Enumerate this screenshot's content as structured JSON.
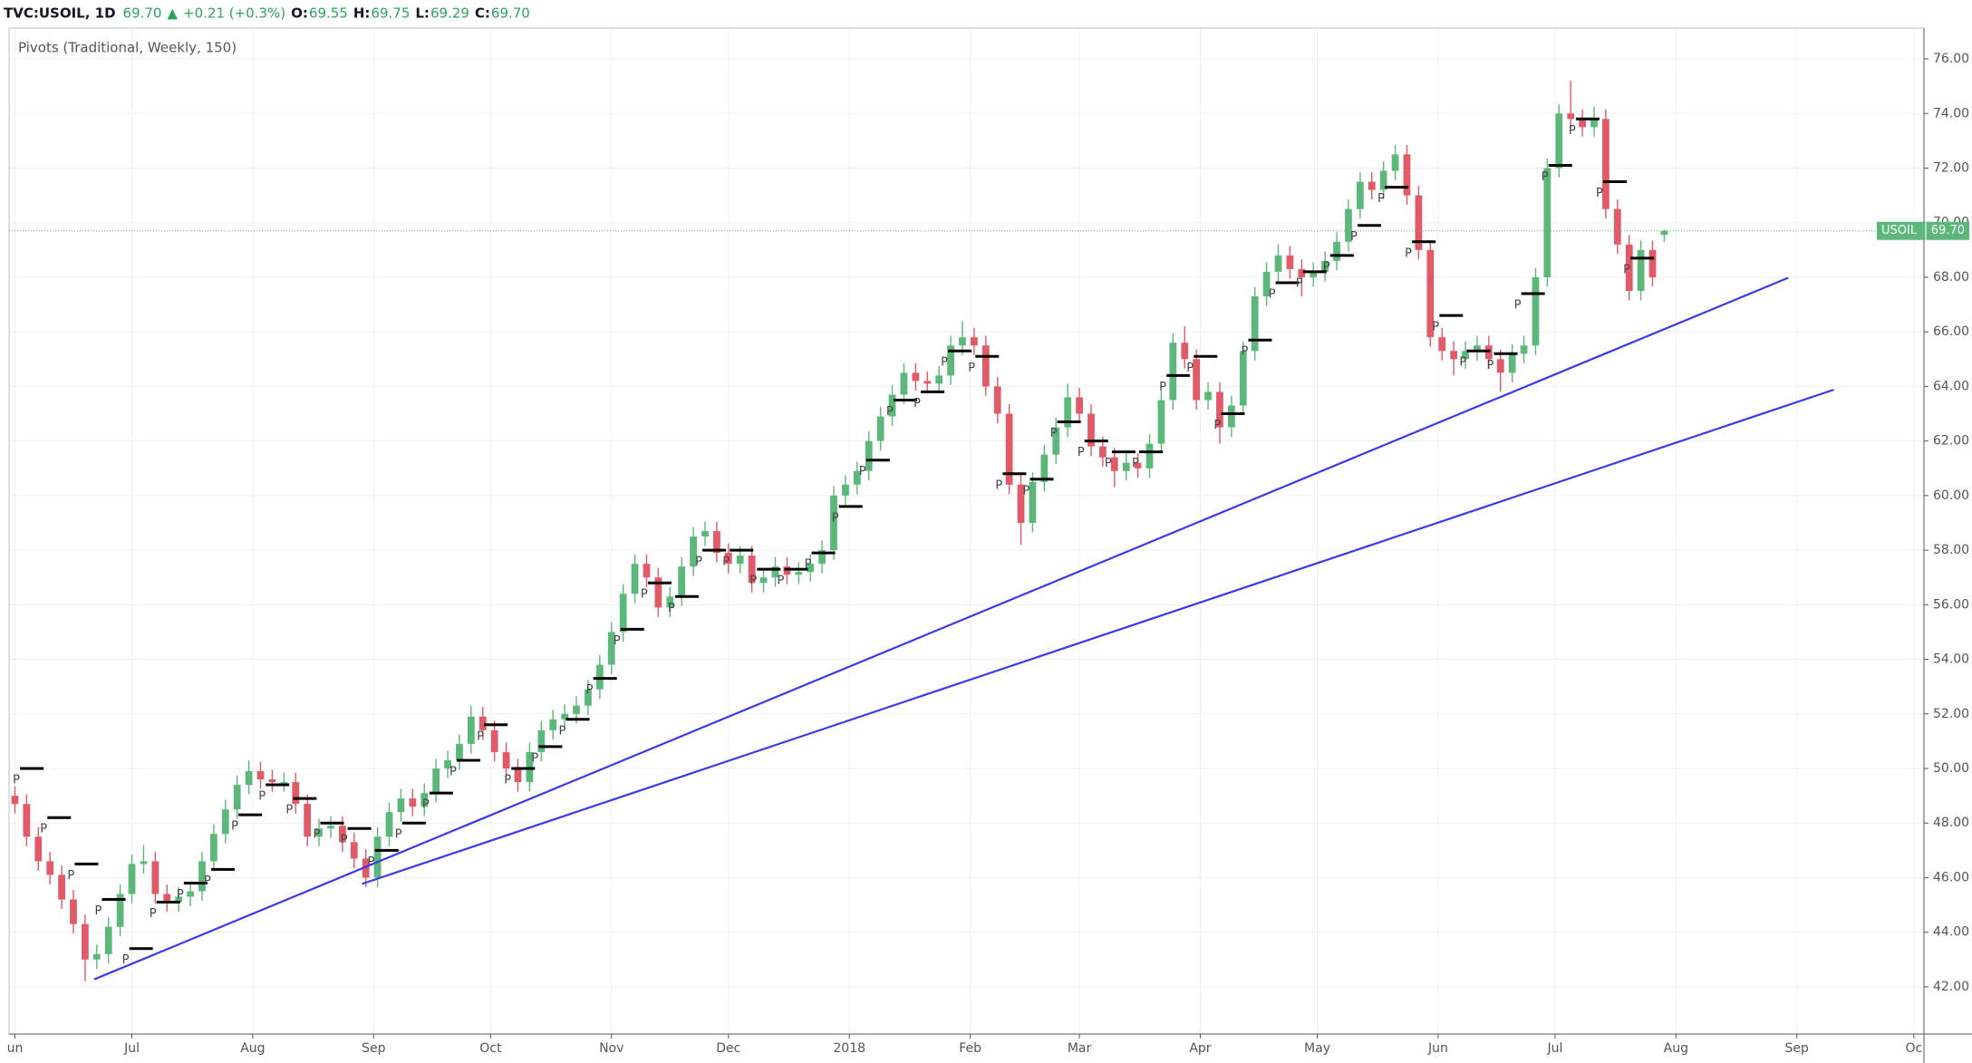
{
  "chart_data": {
    "type": "candlestick",
    "header": {
      "symbol": "TVC:USOIL, 1D",
      "last": "69.70",
      "arrow": "▲",
      "change": "+0.21 (+0.3%)",
      "o_label": "O:",
      "open": "69.55",
      "h_label": "H:",
      "high": "69.75",
      "l_label": "L:",
      "low": "69.29",
      "c_label": "C:",
      "close": "69.70"
    },
    "indicator": "Pivots (Traditional, Weekly, 150)",
    "up_color": "#5cb87a",
    "down_color": "#e05a68",
    "x": [
      0,
      3,
      6,
      9,
      12,
      15,
      18,
      21,
      24,
      27,
      30,
      33,
      36,
      39,
      42,
      45,
      48,
      51,
      54,
      57,
      60,
      63,
      66,
      69,
      72,
      75,
      78,
      81,
      84,
      87,
      90,
      93,
      96,
      99,
      102,
      105,
      108,
      111,
      114,
      117,
      120,
      123,
      126,
      129,
      132,
      135,
      138,
      141,
      144,
      147,
      150,
      153,
      156,
      159,
      162,
      165,
      168,
      171,
      174,
      177,
      180,
      183,
      186,
      189,
      192,
      195,
      198,
      201,
      204,
      207,
      210,
      213,
      216,
      219,
      222,
      225,
      228,
      231,
      234,
      237,
      240,
      243,
      246,
      249,
      252,
      255,
      258,
      261,
      264,
      267,
      270,
      273,
      276,
      279,
      282,
      285,
      288,
      291,
      294,
      297,
      300,
      303,
      306,
      309,
      312,
      315,
      318,
      321,
      324,
      327,
      330,
      333,
      336,
      339,
      342,
      345,
      348,
      351,
      354,
      357,
      360,
      363,
      366,
      369,
      372,
      375,
      378,
      381,
      384,
      387,
      390,
      393,
      396,
      399,
      402,
      405,
      408,
      411,
      414,
      417,
      420,
      423
    ],
    "open": [
      49.0,
      48.7,
      47.5,
      46.6,
      46.1,
      45.2,
      44.3,
      43,
      43.2,
      44.2,
      45.4,
      46.5,
      46.6,
      45.4,
      45.1,
      45.3,
      45.5,
      46.6,
      47.6,
      48.5,
      49.4,
      49.9,
      49.6,
      49.5,
      49.5,
      48.7,
      47.5,
      47.8,
      47.9,
      47.3,
      46.7,
      46,
      47.5,
      48.4,
      48.9,
      48.6,
      49.1,
      50,
      50.3,
      50.9,
      51.9,
      51.4,
      50.6,
      50,
      49.5,
      50.6,
      51.4,
      51.8,
      52,
      52.3,
      52.9,
      53.8,
      55,
      56.4,
      57.5,
      57,
      55.9,
      56.3,
      57.4,
      58.5,
      58.7,
      57.9,
      57.5,
      57.8,
      56.8,
      57,
      57.4,
      57.1,
      57.2,
      57.5,
      58,
      60,
      60.4,
      60.9,
      62,
      62.9,
      63.7,
      64.5,
      64.2,
      64.1,
      64.4,
      65.5,
      65.8,
      65.5,
      64,
      63,
      60.4,
      59,
      60.5,
      61.5,
      62.5,
      63.6,
      63,
      61.8,
      61.4,
      60.9,
      61.2,
      61,
      61.9,
      63.5,
      65.6,
      65,
      63.5,
      63.8,
      62.5,
      63.3,
      65.3,
      67.3,
      68.2,
      68.8,
      68.3,
      68,
      68.2,
      68.6,
      69.3,
      70.5,
      71.5,
      71.2,
      71.9,
      72.5,
      71,
      69,
      65.8,
      65.3,
      65,
      65.3,
      65.5,
      65,
      64.5,
      65.2,
      65.5,
      68,
      72,
      74,
      73.8,
      73.5,
      73.8,
      70.5,
      69.2,
      67.5,
      69,
      69.55
    ],
    "high": [
      49.35,
      49.05,
      47.85,
      46.95,
      46.45,
      45.55,
      44.65,
      43.55,
      44.55,
      45.75,
      46.85,
      47.2,
      46.95,
      45.75,
      45.65,
      45.85,
      46.95,
      47.95,
      48.85,
      49.75,
      50.3,
      50.25,
      49.95,
      49.85,
      49.85,
      49.05,
      48.15,
      48.25,
      48.25,
      47.65,
      47.05,
      47.85,
      48.75,
      49.25,
      49.25,
      49.45,
      50.35,
      50.65,
      51.25,
      52.3,
      52.25,
      51.75,
      50.95,
      50.35,
      50.95,
      51.75,
      52.15,
      52.35,
      52.65,
      53.25,
      54.15,
      55.35,
      56.75,
      57.85,
      57.85,
      57.35,
      56.65,
      57.75,
      58.85,
      59.05,
      59.05,
      58.25,
      58.15,
      58.15,
      57.35,
      57.75,
      57.75,
      57.55,
      57.85,
      58.35,
      60.35,
      60.75,
      61.25,
      62.35,
      63.25,
      64.05,
      64.85,
      64.85,
      64.55,
      64.75,
      65.85,
      66.4,
      66.15,
      65.85,
      64.35,
      63.35,
      60.75,
      60.85,
      61.85,
      62.85,
      64.1,
      63.95,
      63.35,
      62.15,
      61.75,
      61.55,
      61.55,
      62.25,
      63.85,
      65.95,
      66.2,
      65.35,
      64.15,
      64.15,
      63.65,
      65.65,
      67.65,
      68.55,
      69.2,
      69.15,
      68.65,
      68.55,
      68.95,
      69.65,
      70.85,
      71.85,
      71.85,
      72.25,
      72.85,
      72.85,
      71.35,
      69.35,
      66.15,
      65.65,
      65.65,
      65.85,
      65.85,
      65.35,
      65.55,
      65.85,
      68.35,
      72.35,
      74.35,
      75.2,
      74.15,
      74.25,
      74.15,
      70.85,
      69.55,
      69.35,
      69.35,
      69.75
    ],
    "low": [
      48.35,
      47.15,
      46.25,
      45.75,
      44.85,
      43.95,
      42.2,
      42.65,
      42.85,
      43.85,
      45.05,
      46.15,
      45.05,
      44.75,
      44.75,
      44.95,
      45.15,
      46.25,
      47.25,
      48.15,
      49.05,
      49.25,
      49.15,
      49.15,
      48.35,
      47.15,
      47.15,
      47.45,
      46.95,
      46.35,
      45.65,
      45.65,
      47.15,
      48.05,
      48.25,
      48.25,
      48.75,
      49.65,
      49.95,
      50.55,
      51.05,
      50.25,
      49.65,
      49.15,
      49.15,
      50.25,
      51.05,
      51.45,
      51.65,
      51.95,
      52.55,
      53.45,
      54.65,
      56.05,
      56.65,
      55.55,
      55.55,
      55.95,
      57.05,
      58.15,
      57.55,
      57.15,
      57.15,
      56.45,
      56.45,
      56.65,
      56.75,
      56.75,
      56.85,
      57.15,
      57.65,
      59.65,
      60.05,
      60.55,
      61.65,
      62.55,
      63.35,
      63.85,
      63.75,
      63.75,
      64.05,
      65.15,
      65.15,
      63.65,
      62.65,
      60.05,
      58.2,
      58.65,
      60.15,
      61.15,
      62.15,
      62.65,
      61.45,
      61.05,
      60.3,
      60.55,
      60.65,
      60.65,
      61.55,
      63.15,
      64.65,
      63.15,
      63.15,
      61.9,
      62.15,
      62.95,
      64.95,
      66.95,
      67.85,
      67.95,
      67.3,
      67.65,
      67.85,
      68.25,
      68.95,
      70.15,
      70.85,
      70.85,
      71.55,
      70.65,
      68.65,
      65.45,
      64.95,
      64.4,
      64.65,
      64.95,
      64.65,
      63.8,
      64.15,
      64.85,
      65.15,
      67.65,
      71.65,
      73.45,
      73.15,
      73.15,
      70.15,
      68.85,
      67.15,
      67.15,
      67.65,
      69.29
    ],
    "close": [
      48.7,
      47.5,
      46.6,
      46.1,
      45.2,
      44.3,
      43,
      43.2,
      44.2,
      45.4,
      46.5,
      46.6,
      45.4,
      45.1,
      45.3,
      45.5,
      46.6,
      47.6,
      48.5,
      49.4,
      49.9,
      49.6,
      49.5,
      49.5,
      48.7,
      47.5,
      47.8,
      47.9,
      47.3,
      46.7,
      46,
      47.5,
      48.4,
      48.9,
      48.6,
      49.1,
      50,
      50.3,
      50.9,
      51.9,
      51.4,
      50.6,
      50,
      49.5,
      50.6,
      51.4,
      51.8,
      52,
      52.3,
      52.9,
      53.8,
      55,
      56.4,
      57.5,
      57,
      55.9,
      56.3,
      57.4,
      58.5,
      58.7,
      57.9,
      57.5,
      57.8,
      56.8,
      57,
      57.4,
      57.1,
      57.2,
      57.5,
      58,
      60,
      60.4,
      60.9,
      62,
      62.9,
      63.7,
      64.5,
      64.2,
      64.1,
      64.4,
      65.5,
      65.8,
      65.5,
      64,
      63,
      60.4,
      59,
      60.5,
      61.5,
      62.5,
      63.6,
      63,
      61.8,
      61.4,
      60.9,
      61.2,
      61,
      61.9,
      63.5,
      65.6,
      65,
      63.5,
      63.8,
      62.5,
      63.3,
      65.3,
      67.3,
      68.2,
      68.8,
      68.3,
      68,
      68.2,
      68.6,
      69.3,
      70.5,
      71.5,
      71.2,
      71.9,
      72.5,
      71,
      69,
      65.8,
      65.3,
      65,
      65.3,
      65.5,
      65,
      64.5,
      65.2,
      65.5,
      68,
      72,
      74,
      73.8,
      73.5,
      73.8,
      70.5,
      69.2,
      67.5,
      69,
      68,
      69.7
    ],
    "pivots": {
      "marker": "P",
      "color": "#000000",
      "x": [
        -1,
        6,
        13,
        20,
        27,
        34,
        41,
        48,
        55,
        62,
        69,
        76,
        83,
        90,
        97,
        104,
        111,
        118,
        125,
        132,
        139,
        146,
        153,
        160,
        167,
        174,
        181,
        188,
        195,
        202,
        209,
        216,
        223,
        230,
        237,
        244,
        251,
        258,
        265,
        272,
        279,
        286,
        293,
        300,
        307,
        314,
        321,
        328,
        335,
        342,
        349,
        356,
        363,
        370,
        377,
        384,
        391,
        398,
        405,
        412
      ],
      "values": [
        50,
        48.2,
        46.5,
        45.2,
        43.4,
        45.1,
        45.8,
        46.3,
        48.3,
        49.4,
        48.9,
        48,
        47.8,
        47,
        48,
        49.1,
        50.3,
        51.6,
        50,
        50.8,
        51.8,
        53.3,
        55.1,
        56.8,
        56.3,
        58,
        58,
        57.3,
        57.3,
        57.9,
        59.6,
        61.3,
        63.5,
        63.8,
        65.3,
        65.1,
        60.8,
        60.6,
        62.7,
        62,
        61.6,
        61.6,
        64.4,
        65.1,
        63,
        65.7,
        67.8,
        68.2,
        68.8,
        69.9,
        71.3,
        69.3,
        66.6,
        65.3,
        65.2,
        67.4,
        72.1,
        73.8,
        71.5,
        68.7
      ]
    },
    "trend_lines": [
      {
        "x": [
          20.3,
          454.8
        ],
        "values": [
          42.27,
          67.98
        ],
        "color": "#3a3ae6"
      },
      {
        "x": [
          89,
          466.5
        ],
        "values": [
          45.77,
          63.88
        ],
        "color": "#3a3ae6"
      }
    ],
    "last_price": {
      "name": "USOIL",
      "value": 69.7,
      "value_label": "69.70",
      "color": "#5cb87a"
    },
    "xlim": [
      -1.5,
      489.6
    ],
    "xticks": [
      {
        "value": 0,
        "label": "un"
      },
      {
        "value": 30,
        "label": "Jul"
      },
      {
        "value": 61,
        "label": "Aug"
      },
      {
        "value": 92,
        "label": "Sep"
      },
      {
        "value": 122,
        "label": "Oct"
      },
      {
        "value": 153,
        "label": "Nov"
      },
      {
        "value": 183,
        "label": "Dec"
      },
      {
        "value": 214,
        "label": "2018"
      },
      {
        "value": 245,
        "label": "Feb"
      },
      {
        "value": 273,
        "label": "Mar"
      },
      {
        "value": 304,
        "label": "Apr"
      },
      {
        "value": 334,
        "label": "May"
      },
      {
        "value": 365,
        "label": "Jun"
      },
      {
        "value": 395,
        "label": "Jul"
      },
      {
        "value": 426,
        "label": "Aug"
      },
      {
        "value": 457,
        "label": "Sep"
      },
      {
        "value": 487,
        "label": "Oc"
      }
    ],
    "ylim": [
      40.27,
      77.13
    ],
    "yticks": [
      {
        "value": 42,
        "label": "42.00"
      },
      {
        "value": 44,
        "label": "44.00"
      },
      {
        "value": 46,
        "label": "46.00"
      },
      {
        "value": 48,
        "label": "48.00"
      },
      {
        "value": 50,
        "label": "50.00"
      },
      {
        "value": 52,
        "label": "52.00"
      },
      {
        "value": 54,
        "label": "54.00"
      },
      {
        "value": 56,
        "label": "56.00"
      },
      {
        "value": 58,
        "label": "58.00"
      },
      {
        "value": 60,
        "label": "60.00"
      },
      {
        "value": 62,
        "label": "62.00"
      },
      {
        "value": 64,
        "label": "64.00"
      },
      {
        "value": 66,
        "label": "66.00"
      },
      {
        "value": 68,
        "label": "68.00"
      },
      {
        "value": 70,
        "label": "70.00"
      },
      {
        "value": 72,
        "label": "72.00"
      },
      {
        "value": 74,
        "label": "74.00"
      },
      {
        "value": 76,
        "label": "76.00"
      }
    ],
    "grid": true
  }
}
